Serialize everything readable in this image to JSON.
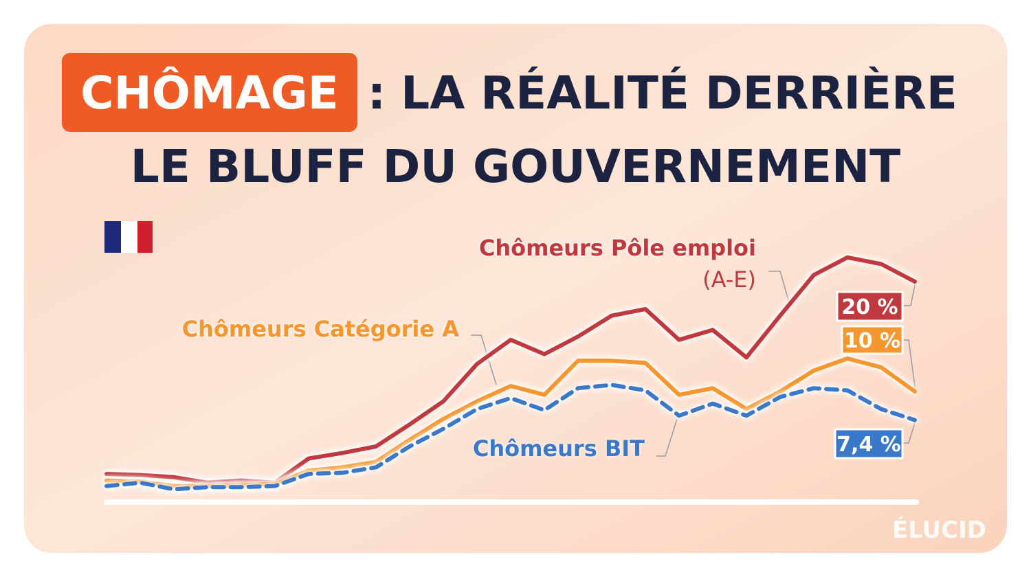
{
  "title": {
    "highlight": "CHÔMAGE",
    "separator": ":",
    "line1": "LA RÉALITÉ DERRIÈRE",
    "line2": "LE BLUFF DU GOUVERNEMENT"
  },
  "brand": "ÉLUCID",
  "chart_data": {
    "type": "line",
    "ylim": [
      0,
      23
    ],
    "series": [
      {
        "name": "Chômeurs Pôle emploi",
        "subname": "(A-E)",
        "color": "#c0393f",
        "values": [
          2.5,
          2.4,
          2.2,
          1.7,
          1.9,
          1.7,
          3.9,
          4.4,
          5.0,
          7.0,
          9.1,
          12.5,
          14.7,
          13.4,
          15.0,
          16.9,
          17.5,
          14.7,
          15.6,
          13.1,
          16.9,
          20.6,
          22.2,
          21.6,
          20.0
        ],
        "value_labels": [
          null,
          null,
          null,
          null,
          null,
          null,
          null,
          null,
          null,
          null,
          null,
          null,
          null,
          null,
          null,
          null,
          null,
          null,
          null,
          null,
          null,
          null,
          null,
          null,
          "20 %"
        ]
      },
      {
        "name": "Chômeurs Catégorie A",
        "color": "#f5962f",
        "values": [
          1.9,
          1.8,
          1.4,
          1.4,
          1.5,
          1.6,
          2.8,
          3.1,
          3.6,
          5.6,
          7.5,
          9.1,
          10.5,
          9.7,
          12.8,
          12.8,
          12.6,
          9.7,
          10.3,
          8.4,
          10.0,
          11.9,
          13.0,
          12.2,
          10.0
        ],
        "value_labels": [
          null,
          null,
          null,
          null,
          null,
          null,
          null,
          null,
          null,
          null,
          null,
          null,
          null,
          null,
          null,
          null,
          null,
          null,
          null,
          null,
          null,
          null,
          null,
          null,
          "10 %"
        ]
      },
      {
        "name": "Chômeurs BIT",
        "color": "#3a78c9",
        "dashed": true,
        "values": [
          1.4,
          1.7,
          1.1,
          1.3,
          1.3,
          1.4,
          2.5,
          2.6,
          3.1,
          5.0,
          6.6,
          8.4,
          9.4,
          8.3,
          10.3,
          10.6,
          10.1,
          7.8,
          8.9,
          7.8,
          9.5,
          10.3,
          10.1,
          8.4,
          7.4
        ],
        "value_labels": [
          null,
          null,
          null,
          null,
          null,
          null,
          null,
          null,
          null,
          null,
          null,
          null,
          null,
          null,
          null,
          null,
          null,
          null,
          null,
          null,
          null,
          null,
          null,
          null,
          "7,4 %"
        ]
      }
    ]
  }
}
